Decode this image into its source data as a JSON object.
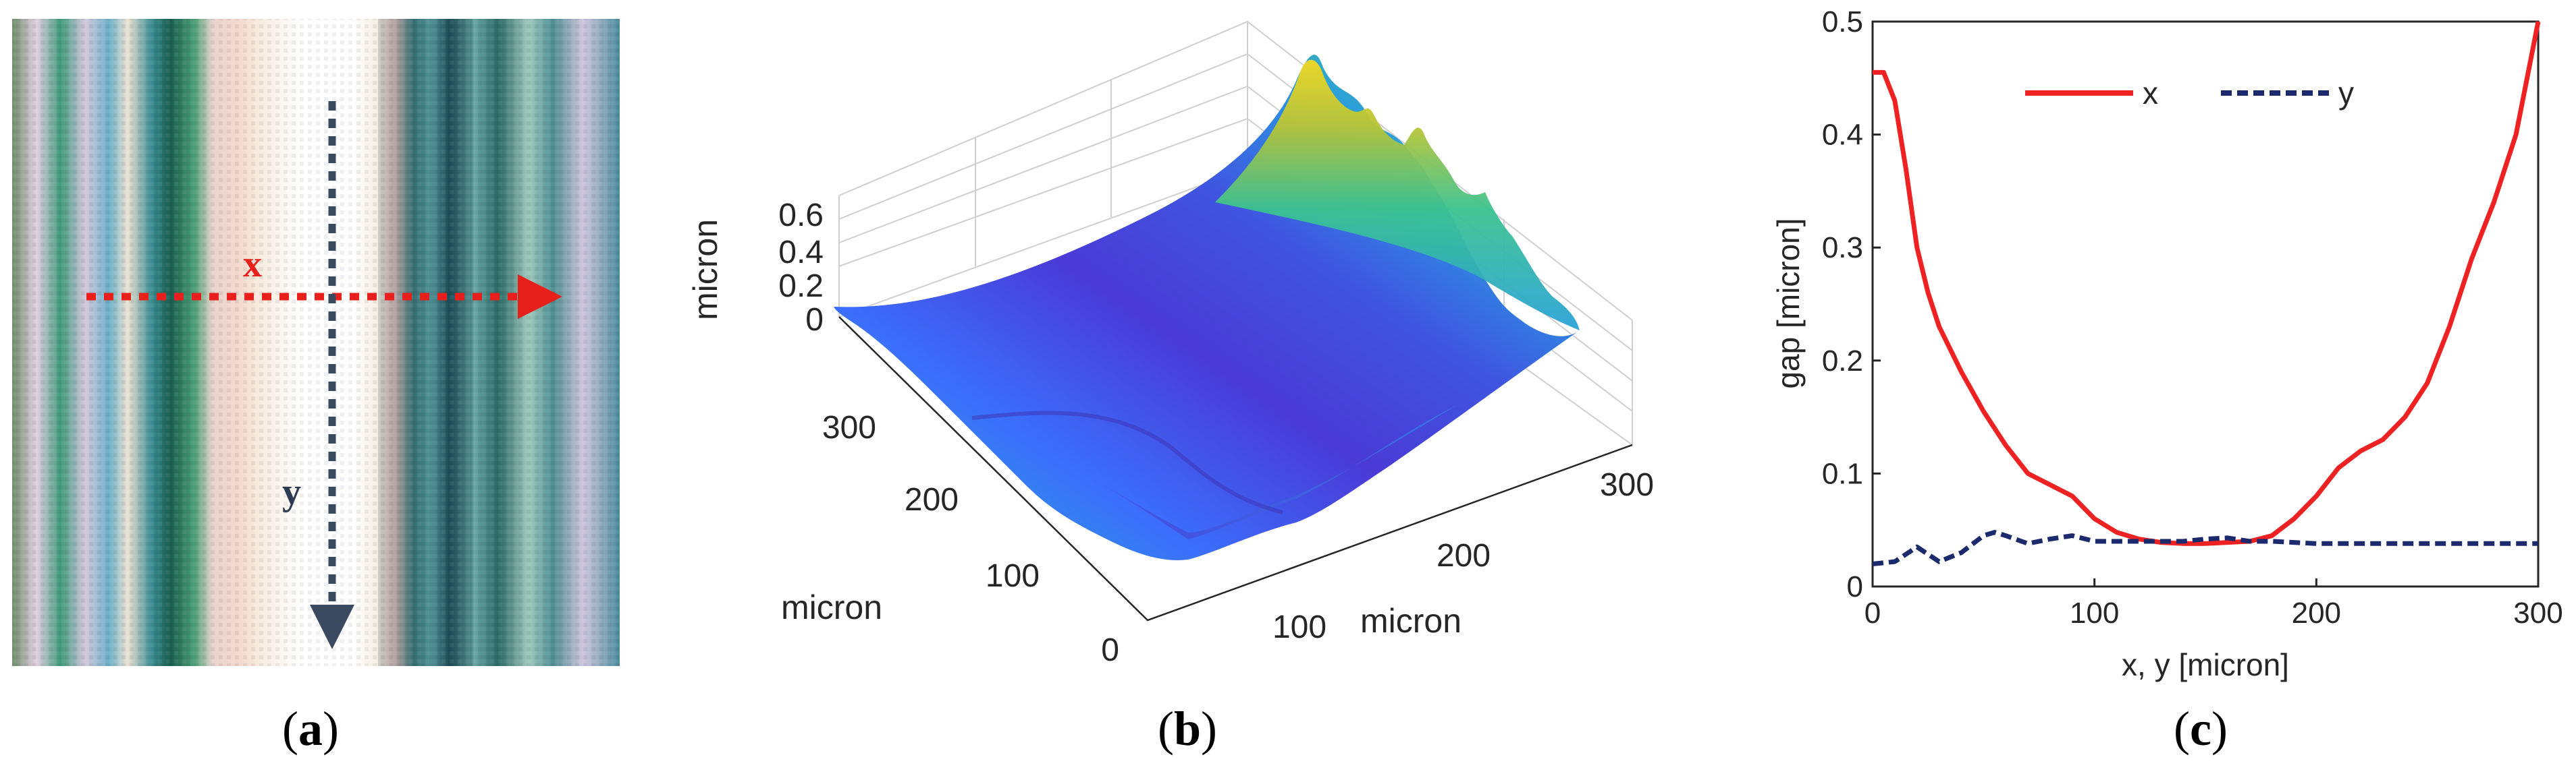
{
  "figure": {
    "panels": [
      {
        "id": "a",
        "caption_open": "(",
        "caption_letter": "a",
        "caption_close": ")",
        "image": {
          "x_label": "x",
          "y_label": "y",
          "x_arrow_color": "#e8201c",
          "y_arrow_color": "#3a4a60"
        }
      },
      {
        "id": "b",
        "caption_open": "(",
        "caption_letter": "b",
        "caption_close": ")"
      },
      {
        "id": "c",
        "caption_open": "(",
        "caption_letter": "c",
        "caption_close": ")"
      }
    ]
  },
  "chart_data": [
    {
      "type": "surface",
      "panel": "b",
      "zlabel": "micron",
      "xlabel": "micron",
      "ylabel": "micron",
      "z_ticks": [
        "0",
        "0.2",
        "0.4",
        "0.6"
      ],
      "x_ticks": [
        "100",
        "200",
        "300"
      ],
      "y_ticks": [
        "0",
        "100",
        "200",
        "300"
      ],
      "xlim": [
        0,
        340
      ],
      "ylim": [
        0,
        340
      ],
      "zlim": [
        0,
        0.6
      ],
      "colormap": [
        "#3e26a8",
        "#4743e8",
        "#3b6ffc",
        "#2b93ed",
        "#18b4c9",
        "#3dc48f",
        "#9fc73c",
        "#e7b92f",
        "#fadf1f",
        "#f9fb15"
      ]
    },
    {
      "type": "line",
      "panel": "c",
      "title": "",
      "xlabel": "x, y [micron]",
      "ylabel": "gap [micron]",
      "xlim": [
        0,
        300
      ],
      "ylim": [
        0,
        0.5
      ],
      "x_ticks": [
        0,
        100,
        200,
        300
      ],
      "y_ticks": [
        0,
        0.1,
        0.2,
        0.3,
        0.4,
        0.5
      ],
      "legend_position": "top",
      "series": [
        {
          "name": "x",
          "color": "#ee2222",
          "dash": "solid",
          "x": [
            0,
            5,
            10,
            15,
            20,
            25,
            30,
            40,
            50,
            60,
            70,
            80,
            90,
            100,
            110,
            120,
            130,
            140,
            150,
            160,
            170,
            180,
            190,
            200,
            210,
            220,
            230,
            240,
            250,
            260,
            270,
            280,
            290,
            300
          ],
          "y": [
            0.455,
            0.455,
            0.43,
            0.37,
            0.3,
            0.26,
            0.23,
            0.19,
            0.155,
            0.125,
            0.1,
            0.09,
            0.08,
            0.06,
            0.048,
            0.042,
            0.039,
            0.038,
            0.038,
            0.039,
            0.04,
            0.045,
            0.06,
            0.08,
            0.105,
            0.12,
            0.13,
            0.15,
            0.18,
            0.23,
            0.29,
            0.34,
            0.4,
            0.5
          ]
        },
        {
          "name": "y",
          "color": "#1a2a6c",
          "dash": "dashed",
          "x": [
            0,
            10,
            20,
            30,
            40,
            50,
            55,
            60,
            70,
            80,
            90,
            100,
            110,
            120,
            130,
            140,
            150,
            160,
            170,
            180,
            200,
            220,
            250,
            280,
            300
          ],
          "y": [
            0.02,
            0.022,
            0.035,
            0.022,
            0.03,
            0.045,
            0.048,
            0.045,
            0.038,
            0.042,
            0.045,
            0.04,
            0.04,
            0.04,
            0.04,
            0.04,
            0.042,
            0.043,
            0.04,
            0.04,
            0.038,
            0.038,
            0.038,
            0.038,
            0.038
          ]
        }
      ]
    }
  ]
}
